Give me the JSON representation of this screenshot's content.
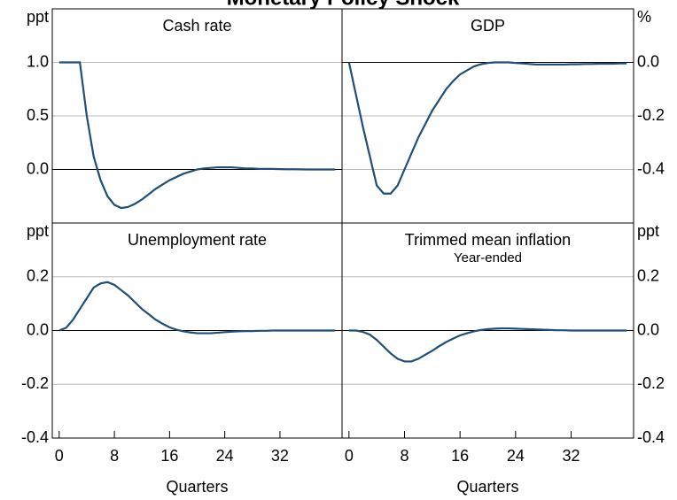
{
  "title": "Monetary Policy Shock",
  "chart_data": [
    {
      "type": "line",
      "title": "Cash rate",
      "ylabel": "ppt",
      "color": "#1f4e79",
      "x": [
        0,
        1,
        2,
        3,
        4,
        5,
        6,
        7,
        8,
        9,
        10,
        11,
        12,
        13,
        14,
        15,
        16,
        17,
        18,
        19,
        20,
        21,
        22,
        23,
        24,
        25,
        26,
        27,
        28,
        29,
        30,
        31,
        32,
        33,
        34,
        35,
        36,
        37,
        38,
        39,
        40
      ],
      "values": [
        1,
        1,
        1,
        1,
        0.5,
        0.12,
        -0.1,
        -0.25,
        -0.33,
        -0.36,
        -0.35,
        -0.32,
        -0.28,
        -0.23,
        -0.18,
        -0.14,
        -0.1,
        -0.07,
        -0.04,
        -0.02,
        0,
        0.01,
        0.015,
        0.02,
        0.02,
        0.02,
        0.015,
        0.01,
        0.01,
        0.005,
        0.005,
        0.005,
        0.003,
        0.002,
        0.002,
        0.001,
        0,
        0,
        0,
        0,
        0
      ],
      "xlim": [
        -1,
        41
      ],
      "ylim": [
        -0.5,
        1.5
      ],
      "yticks": [
        {
          "value": 0,
          "label": "0.0"
        },
        0.5,
        {
          "value": 1,
          "label": "1.0"
        }
      ],
      "grid": true
    },
    {
      "type": "line",
      "title": "GDP",
      "ylabel": "%",
      "color": "#1f4e79",
      "x": [
        0,
        1,
        2,
        3,
        4,
        5,
        6,
        7,
        8,
        9,
        10,
        11,
        12,
        13,
        14,
        15,
        16,
        17,
        18,
        19,
        20,
        21,
        22,
        23,
        24,
        25,
        26,
        27,
        28,
        29,
        30,
        31,
        32,
        33,
        34,
        35,
        36,
        37,
        38,
        39,
        40
      ],
      "values": [
        0,
        -0.12,
        -0.24,
        -0.35,
        -0.46,
        -0.49,
        -0.49,
        -0.46,
        -0.4,
        -0.34,
        -0.28,
        -0.23,
        -0.18,
        -0.14,
        -0.1,
        -0.07,
        -0.045,
        -0.03,
        -0.015,
        -0.007,
        -0.002,
        0,
        0,
        0,
        -0.002,
        -0.004,
        -0.006,
        -0.008,
        -0.008,
        -0.008,
        -0.008,
        -0.008,
        -0.007,
        -0.007,
        -0.006,
        -0.006,
        -0.005,
        -0.005,
        -0.005,
        -0.004,
        -0.004
      ],
      "xlim": [
        -1,
        41
      ],
      "ylim": [
        -0.6,
        0.2
      ],
      "yticks": [
        -0.4,
        -0.2,
        {
          "value": 0,
          "label": "0.0"
        }
      ],
      "grid": true
    },
    {
      "type": "line",
      "title": "Unemployment rate",
      "ylabel": "ppt",
      "xlabel": "Quarters",
      "color": "#1f4e79",
      "x": [
        0,
        1,
        2,
        3,
        4,
        5,
        6,
        7,
        8,
        9,
        10,
        11,
        12,
        13,
        14,
        15,
        16,
        17,
        18,
        19,
        20,
        21,
        22,
        23,
        24,
        25,
        26,
        27,
        28,
        29,
        30,
        31,
        32,
        33,
        34,
        35,
        36,
        37,
        38,
        39,
        40
      ],
      "values": [
        0,
        0.01,
        0.04,
        0.08,
        0.12,
        0.16,
        0.175,
        0.18,
        0.17,
        0.15,
        0.13,
        0.105,
        0.08,
        0.06,
        0.04,
        0.025,
        0.012,
        0.003,
        -0.003,
        -0.007,
        -0.01,
        -0.01,
        -0.01,
        -0.008,
        -0.006,
        -0.004,
        -0.003,
        -0.002,
        -0.002,
        -0.001,
        -0.001,
        0,
        0,
        0,
        0,
        0,
        0,
        0,
        0,
        0,
        0
      ],
      "xlim": [
        -1,
        41
      ],
      "ylim": [
        -0.4,
        0.4
      ],
      "xticks": [
        0,
        8,
        16,
        24,
        32
      ],
      "yticks": [
        -0.4,
        -0.2,
        {
          "value": 0,
          "label": "0.0"
        },
        0.2
      ],
      "grid": true
    },
    {
      "type": "line",
      "title": "Trimmed mean inflation",
      "subtitle": "Year-ended",
      "ylabel": "ppt",
      "xlabel": "Quarters",
      "color": "#1f4e79",
      "x": [
        0,
        1,
        2,
        3,
        4,
        5,
        6,
        7,
        8,
        9,
        10,
        11,
        12,
        13,
        14,
        15,
        16,
        17,
        18,
        19,
        20,
        21,
        22,
        23,
        24,
        25,
        26,
        27,
        28,
        29,
        30,
        31,
        32,
        33,
        34,
        35,
        36,
        37,
        38,
        39,
        40
      ],
      "values": [
        0,
        0,
        -0.005,
        -0.015,
        -0.035,
        -0.06,
        -0.085,
        -0.105,
        -0.115,
        -0.115,
        -0.105,
        -0.09,
        -0.075,
        -0.058,
        -0.043,
        -0.03,
        -0.018,
        -0.01,
        -0.003,
        0.002,
        0.005,
        0.007,
        0.008,
        0.008,
        0.007,
        0.006,
        0.005,
        0.004,
        0.003,
        0.002,
        0.001,
        0.001,
        0,
        0,
        0,
        0,
        0,
        0,
        0,
        0,
        0
      ],
      "xlim": [
        -1,
        41
      ],
      "ylim": [
        -0.4,
        0.4
      ],
      "xticks": [
        0,
        8,
        16,
        24,
        32
      ],
      "yticks": [
        -0.4,
        -0.2,
        {
          "value": 0,
          "label": "0.0"
        },
        0.2
      ],
      "grid": true
    }
  ]
}
